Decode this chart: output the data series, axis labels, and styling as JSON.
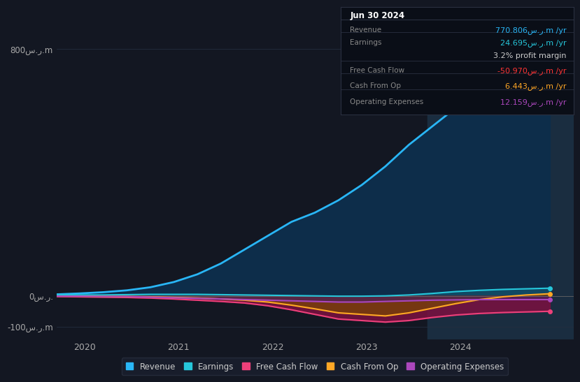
{
  "bg_color": "#131722",
  "plot_bg_color": "#131722",
  "grid_color": "#232d3f",
  "ytick_labels": [
    "800س.ر.m",
    "0س.ر.",
    "-100س.ر.m"
  ],
  "ytick_values": [
    800,
    0,
    -100
  ],
  "xtick_labels": [
    "2020",
    "2021",
    "2022",
    "2023",
    "2024"
  ],
  "xtick_values": [
    2020,
    2021,
    2022,
    2023,
    2024
  ],
  "legend_items": [
    "Revenue",
    "Earnings",
    "Free Cash Flow",
    "Cash From Op",
    "Operating Expenses"
  ],
  "legend_colors": [
    "#29b6f6",
    "#26c6da",
    "#ec407a",
    "#ffa726",
    "#ab47bc"
  ],
  "info_box_title": "Jun 30 2024",
  "info_rows": [
    {
      "label": "Revenue",
      "value": "770.806س.ر.m /yr",
      "lcolor": "#888888",
      "vcolor": "#29b6f6"
    },
    {
      "label": "Earnings",
      "value": "24.695س.ر.m /yr",
      "lcolor": "#888888",
      "vcolor": "#26c6da"
    },
    {
      "label": "",
      "value": "3.2% profit margin",
      "lcolor": "#888888",
      "vcolor": "#cccccc"
    },
    {
      "label": "Free Cash Flow",
      "value": "-50.970س.ر.m /yr",
      "lcolor": "#888888",
      "vcolor": "#ff3333"
    },
    {
      "label": "Cash From Op",
      "value": "6.443س.ر.m /yr",
      "lcolor": "#888888",
      "vcolor": "#ffa726"
    },
    {
      "label": "Operating Expenses",
      "value": "12.159س.ر.m /yr",
      "lcolor": "#888888",
      "vcolor": "#ab47bc"
    }
  ],
  "xmin": 2019.7,
  "xmax": 2025.2,
  "ymin": -140,
  "ymax": 900,
  "highlight_xstart": 2023.65,
  "highlight_xend": 2025.2,
  "revenue_color": "#29b6f6",
  "revenue_fill": "#0d2d4a",
  "earnings_color": "#26c6da",
  "fcf_color": "#ec407a",
  "cfo_color": "#ffa726",
  "opex_color": "#ab47bc",
  "x_data": [
    2019.7,
    2019.95,
    2020.2,
    2020.45,
    2020.7,
    2020.95,
    2021.2,
    2021.45,
    2021.7,
    2021.95,
    2022.2,
    2022.45,
    2022.7,
    2022.95,
    2023.2,
    2023.45,
    2023.7,
    2023.95,
    2024.2,
    2024.45,
    2024.7,
    2024.95
  ],
  "revenue": [
    5,
    8,
    12,
    18,
    28,
    45,
    70,
    105,
    150,
    195,
    240,
    270,
    310,
    360,
    420,
    490,
    550,
    610,
    660,
    710,
    760,
    800
  ],
  "earnings": [
    3,
    3,
    3,
    4,
    5,
    5,
    5,
    4,
    3,
    2,
    1,
    0,
    -1,
    -1,
    0,
    3,
    8,
    14,
    18,
    21,
    23,
    25
  ],
  "free_cash_flow": [
    -2,
    -3,
    -4,
    -5,
    -7,
    -10,
    -14,
    -18,
    -23,
    -32,
    -45,
    -60,
    -75,
    -80,
    -85,
    -80,
    -70,
    -62,
    -57,
    -54,
    -52,
    -50
  ],
  "cash_from_op": [
    -1,
    -1,
    -2,
    -2,
    -3,
    -5,
    -7,
    -10,
    -14,
    -20,
    -30,
    -42,
    -55,
    -60,
    -65,
    -55,
    -40,
    -25,
    -12,
    -3,
    3,
    7
  ],
  "operating_expenses": [
    -1,
    -1,
    -2,
    -2,
    -4,
    -6,
    -8,
    -10,
    -12,
    -14,
    -16,
    -18,
    -20,
    -20,
    -18,
    -16,
    -14,
    -13,
    -12,
    -12,
    -12,
    -12
  ]
}
